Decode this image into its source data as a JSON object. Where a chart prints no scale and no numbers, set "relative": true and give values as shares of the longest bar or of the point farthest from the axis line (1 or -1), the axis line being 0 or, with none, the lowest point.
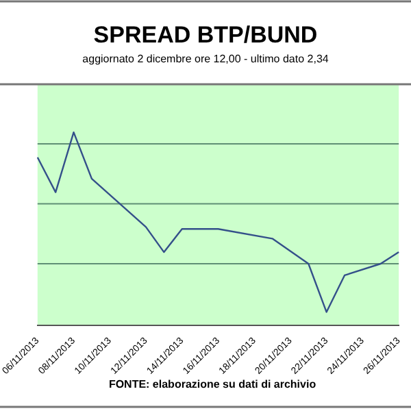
{
  "chart_data": {
    "type": "line",
    "title": "SPREAD BTP/BUND",
    "subtitle": "aggiornato 2 dicembre ore 12,00 - ultimo dato 2,34",
    "categories": [
      "06/11/2013",
      null,
      "08/11/2013",
      null,
      "10/11/2013",
      null,
      "12/11/2013",
      null,
      "14/11/2013",
      null,
      "16/11/2013",
      null,
      "18/11/2013",
      null,
      "20/11/2013",
      null,
      "22/11/2013",
      null,
      "24/11/2013",
      null,
      "26/11/2013"
    ],
    "series": [
      {
        "color": "#34508a",
        "values": [
          0.87,
          0.69,
          1,
          0.76,
          null,
          null,
          0.51,
          0.38,
          0.5,
          null,
          0.5,
          null,
          null,
          0.45,
          null,
          0.32,
          0.07,
          0.26,
          null,
          0.32,
          0.38
        ]
      }
    ],
    "relative": true,
    "ref_lines": [
      {
        "axis": "y",
        "value": 0.32,
        "color": "#5f8f75"
      },
      {
        "axis": "y",
        "value": 0.63,
        "color": "#5f8f75"
      },
      {
        "axis": "y",
        "value": 0.94,
        "color": "#5f8f75"
      }
    ],
    "legend": false,
    "marker": "none",
    "line_style": "solid",
    "annotations": [
      "FONTE: elaborazione su dati di archivio"
    ]
  }
}
